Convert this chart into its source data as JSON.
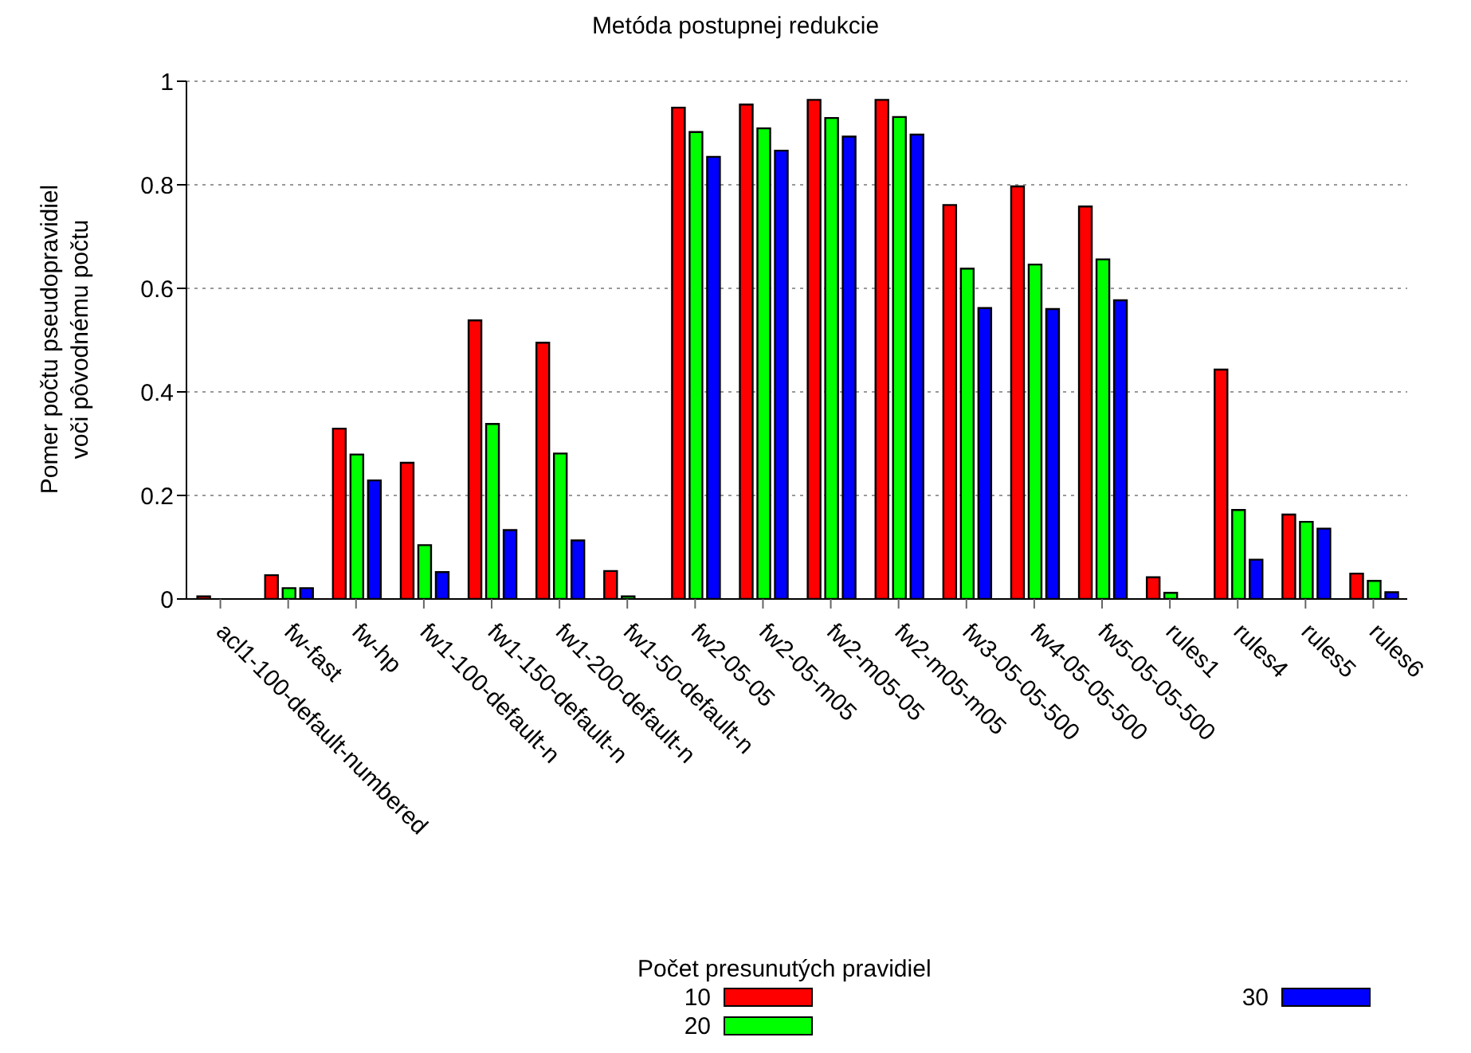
{
  "chart_data": {
    "type": "bar",
    "title": "Metóda postupnej redukcie",
    "ylabel": "Pomer počtu pseudopravidiel voči pôvodnému počtu",
    "legend_title": "Počet presunutých pravidiel",
    "legend": "bottom",
    "grid": "y",
    "categories": [
      "acl1-100-default-numbered",
      "fw-fast",
      "fw-hp",
      "fw1-100-default-n",
      "fw1-150-default-n",
      "fw1-200-default-n",
      "fw1-50-default-n",
      "fw2-05-05",
      "fw2-05-m05",
      "fw2-m05-05",
      "fw2-m05-m05",
      "fw3-05-05-500",
      "fw4-05-05-500",
      "fw5-05-05-500",
      "rules1",
      "rules4",
      "rules5",
      "rules6"
    ],
    "series": [
      {
        "name": "10",
        "color": "#ff0000",
        "values": [
          0.005,
          0.046,
          0.329,
          0.263,
          0.538,
          0.495,
          0.054,
          0.949,
          0.955,
          0.964,
          0.964,
          0.761,
          0.797,
          0.758,
          0.042,
          0.443,
          0.163,
          0.049
        ]
      },
      {
        "name": "20",
        "color": "#00ff00",
        "values": [
          null,
          0.021,
          0.279,
          0.104,
          0.338,
          0.281,
          0.005,
          0.902,
          0.909,
          0.929,
          0.931,
          0.638,
          0.646,
          0.656,
          0.012,
          0.172,
          0.149,
          0.035
        ]
      },
      {
        "name": "30",
        "color": "#0000ff",
        "values": [
          null,
          0.021,
          0.229,
          0.052,
          0.133,
          0.113,
          null,
          0.854,
          0.866,
          0.893,
          0.897,
          0.562,
          0.56,
          0.577,
          null,
          0.076,
          0.136,
          0.013
        ]
      }
    ],
    "ylim": [
      0,
      1
    ],
    "yticks": [
      0,
      0.2,
      0.4,
      0.6,
      0.8,
      1
    ]
  }
}
